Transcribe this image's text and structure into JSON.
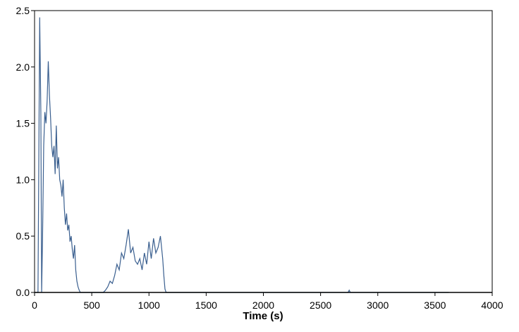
{
  "chart_data": {
    "type": "line",
    "title": "",
    "xlabel": "Time (s)",
    "ylabel": "",
    "xlim": [
      0,
      4000
    ],
    "ylim": [
      0,
      2.5
    ],
    "xticks": [
      0,
      500,
      1000,
      1500,
      2000,
      2500,
      3000,
      3500,
      4000
    ],
    "yticks": [
      0.0,
      0.5,
      1.0,
      1.5,
      2.0,
      2.5
    ],
    "xtick_labels": [
      "0",
      "500",
      "1000",
      "1500",
      "2000",
      "2500",
      "3000",
      "3500",
      "4000"
    ],
    "ytick_labels": [
      "0.0",
      "0.5",
      "1.0",
      "1.5",
      "2.0",
      "2.5"
    ],
    "grid": false,
    "legend": "none",
    "series": [
      {
        "color": "#3a5f8f",
        "x": [
          0,
          30,
          45,
          55,
          62,
          70,
          80,
          90,
          100,
          110,
          120,
          130,
          140,
          150,
          160,
          170,
          180,
          190,
          200,
          210,
          220,
          230,
          240,
          250,
          260,
          270,
          280,
          290,
          300,
          310,
          320,
          330,
          340,
          350,
          360,
          370,
          380,
          390,
          400,
          420,
          600,
          620,
          640,
          660,
          680,
          700,
          720,
          740,
          760,
          780,
          800,
          820,
          840,
          860,
          880,
          900,
          920,
          940,
          960,
          980,
          1000,
          1020,
          1040,
          1060,
          1080,
          1100,
          1120,
          1130,
          1140,
          1150,
          1200,
          1500,
          2000,
          2500,
          2740,
          2750,
          2760,
          2800,
          3000,
          3500,
          3620
        ],
        "y": [
          0.0,
          0.0,
          2.44,
          1.6,
          0.0,
          0.5,
          1.3,
          1.6,
          1.5,
          1.7,
          2.05,
          1.75,
          1.55,
          1.3,
          1.2,
          1.3,
          1.05,
          1.48,
          1.1,
          1.2,
          1.0,
          0.95,
          0.85,
          1.0,
          0.75,
          0.6,
          0.7,
          0.55,
          0.6,
          0.45,
          0.5,
          0.38,
          0.3,
          0.42,
          0.2,
          0.1,
          0.05,
          0.02,
          0.0,
          0.0,
          0.0,
          0.02,
          0.05,
          0.1,
          0.08,
          0.15,
          0.25,
          0.2,
          0.35,
          0.3,
          0.42,
          0.56,
          0.35,
          0.4,
          0.28,
          0.25,
          0.3,
          0.2,
          0.35,
          0.25,
          0.45,
          0.3,
          0.48,
          0.35,
          0.4,
          0.5,
          0.3,
          0.15,
          0.03,
          0.0,
          0.0,
          0.0,
          0.0,
          0.0,
          0.0,
          0.02,
          0.0,
          0.0,
          0.0,
          0.0,
          0.0
        ]
      }
    ]
  }
}
